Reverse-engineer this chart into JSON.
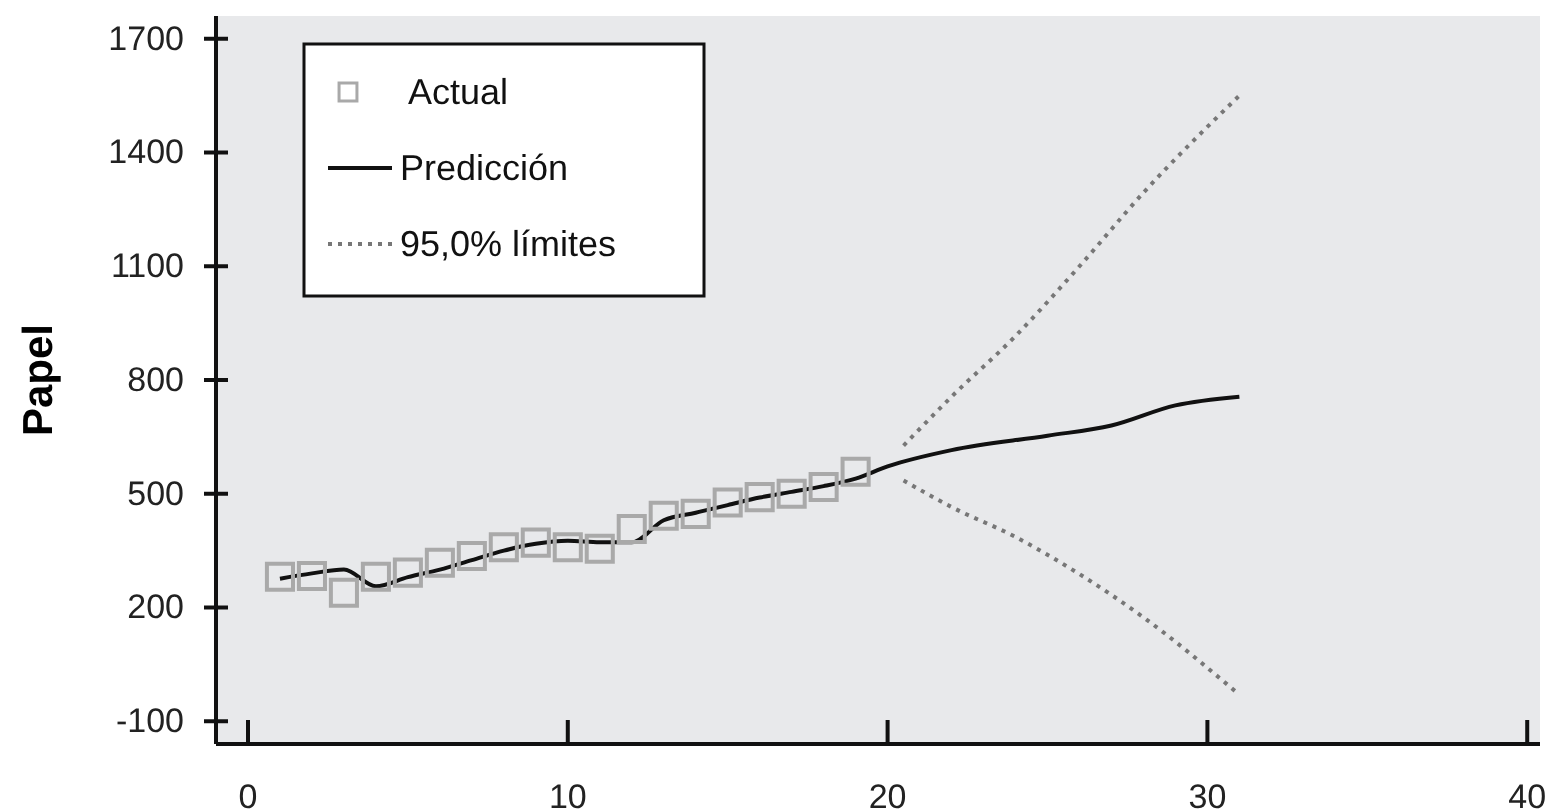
{
  "chart_data": {
    "type": "line",
    "ylabel": "Papel",
    "xlim": [
      -1,
      40.4
    ],
    "ylim": [
      -160,
      1760
    ],
    "xticks": [
      0,
      10,
      20,
      30,
      40
    ],
    "yticks": [
      -100,
      200,
      500,
      800,
      1100,
      1400,
      1700
    ],
    "grid": false,
    "legend": "top left",
    "series": [
      {
        "name": "Actual",
        "type": "scatter",
        "marker": "square",
        "color": "#a9a9a9",
        "x": [
          1,
          2,
          3,
          4,
          5,
          6,
          7,
          8,
          9,
          10,
          11,
          12,
          13,
          14,
          15,
          16,
          17,
          18,
          19
        ],
        "values": [
          281,
          283,
          239,
          281,
          292,
          318,
          336,
          359,
          371,
          359,
          355,
          407,
          442,
          447,
          477,
          491,
          500,
          518,
          558
        ]
      },
      {
        "name": "Predicción",
        "type": "line",
        "line_style": "solid",
        "color": "#111111",
        "x": [
          1,
          2,
          3,
          4,
          5,
          6,
          7,
          8,
          9,
          10,
          11,
          12,
          13,
          14,
          15,
          16,
          17,
          18,
          19,
          20,
          22,
          25,
          27,
          29,
          31
        ],
        "values": [
          276,
          290,
          300,
          256,
          280,
          300,
          325,
          350,
          368,
          376,
          372,
          372,
          430,
          450,
          470,
          490,
          505,
          520,
          540,
          572,
          615,
          653,
          680,
          733,
          756
        ]
      },
      {
        "name": "95,0% límites",
        "type": "line",
        "line_style": "dotted",
        "color": "#777777",
        "x": [
          20.5,
          22,
          24,
          26,
          28,
          31
        ],
        "values": [
          627,
          756,
          916,
          1100,
          1294,
          1550
        ]
      },
      {
        "type": "line",
        "line_style": "dotted",
        "color": "#777777",
        "x": [
          20.5,
          22,
          24,
          26,
          28,
          31
        ],
        "values": [
          535,
          465,
          386,
          288,
          174,
          -30
        ]
      }
    ]
  }
}
